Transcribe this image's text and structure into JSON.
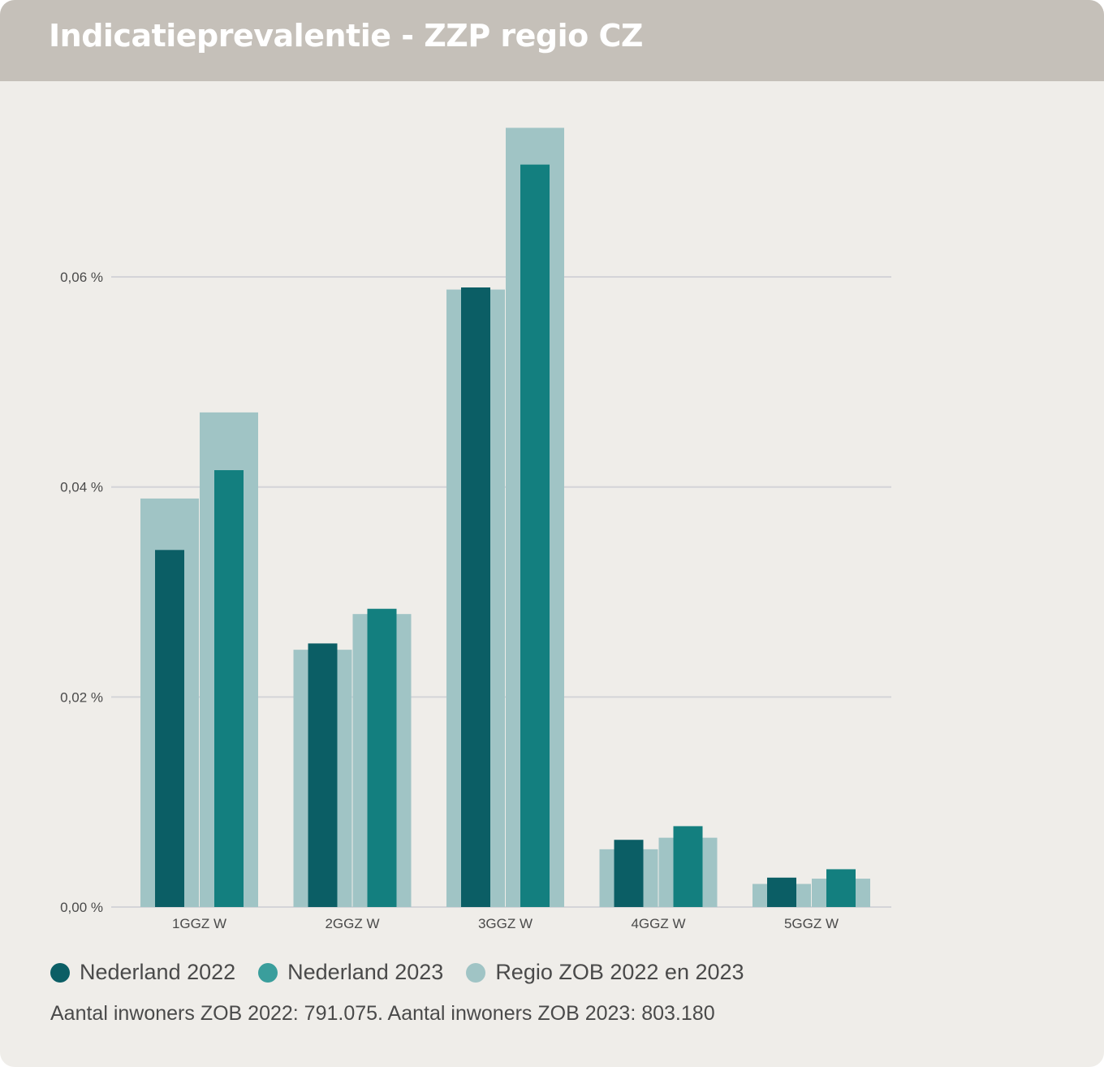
{
  "title": "Indicatieprevalentie - ZZP regio CZ",
  "colors": {
    "header_bg": "#c5c0b9",
    "card_bg": "#efede9",
    "nl2022": "#0b5e65",
    "nl2023": "#137f7f",
    "regio": "#a0c4c5",
    "grid": "#d4d4d8"
  },
  "legend": [
    {
      "label": "Nederland 2022",
      "color": "#0b5e65"
    },
    {
      "label": "Nederland 2023",
      "color": "#3a9e9c"
    },
    {
      "label": "Regio ZOB 2022 en 2023",
      "color": "#a0c4c5"
    }
  ],
  "note": "Aantal inwoners ZOB 2022: 791.075. Aantal inwoners ZOB 2023: 803.180",
  "chart_data": {
    "type": "bar",
    "categories": [
      "1GGZ W",
      "2GGZ W",
      "3GGZ W",
      "4GGZ W",
      "5GGZ W"
    ],
    "y_ticks": [
      {
        "value": 0.0,
        "label": "0,00 %"
      },
      {
        "value": 0.02,
        "label": "0,02 %"
      },
      {
        "value": 0.04,
        "label": "0,04 %"
      },
      {
        "value": 0.06,
        "label": "0,06 %"
      }
    ],
    "ylim": [
      0,
      0.074
    ],
    "grid": true,
    "legend_position": "bottom-left",
    "series": [
      {
        "name": "Nederland 2022",
        "values": [
          0.034,
          0.0251,
          0.059,
          0.0064,
          0.0028
        ]
      },
      {
        "name": "Nederland 2023",
        "values": [
          0.0416,
          0.0284,
          0.0707,
          0.0077,
          0.0036
        ]
      },
      {
        "name": "Regio ZOB 2022",
        "values": [
          0.0389,
          0.0245,
          0.0588,
          0.0055,
          0.0022
        ]
      },
      {
        "name": "Regio ZOB 2023",
        "values": [
          0.0471,
          0.0279,
          0.0742,
          0.0066,
          0.0027
        ]
      }
    ]
  }
}
